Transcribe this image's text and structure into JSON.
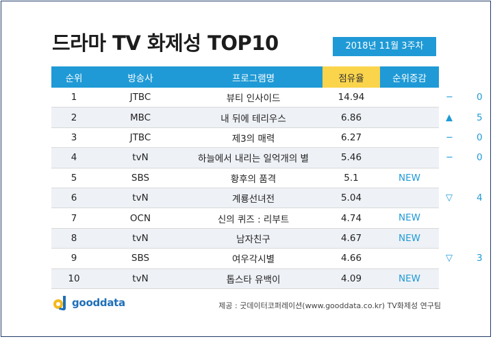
{
  "title": "드라마 TV 화제성 TOP10",
  "week": "2018년  11월 3주차",
  "columns": [
    "순위",
    "방송사",
    "프로그램명",
    "점유율",
    "순위증감"
  ],
  "rows": [
    {
      "rank": "1",
      "broadcaster": "JTBC",
      "program": "뷰티 인사이드",
      "share": "14.94",
      "change_symbol": "−",
      "change_value": "0",
      "change_new": ""
    },
    {
      "rank": "2",
      "broadcaster": "MBC",
      "program": "내 뒤에 테리우스",
      "share": "6.86",
      "change_symbol": "▲",
      "change_value": "5",
      "change_new": ""
    },
    {
      "rank": "3",
      "broadcaster": "JTBC",
      "program": "제3의 매력",
      "share": "6.27",
      "change_symbol": "−",
      "change_value": "0",
      "change_new": ""
    },
    {
      "rank": "4",
      "broadcaster": "tvN",
      "program": "하늘에서 내리는 일억개의 별",
      "share": "5.46",
      "change_symbol": "−",
      "change_value": "0",
      "change_new": ""
    },
    {
      "rank": "5",
      "broadcaster": "SBS",
      "program": "황후의 품격",
      "share": "5.1",
      "change_symbol": "",
      "change_value": "",
      "change_new": "NEW"
    },
    {
      "rank": "6",
      "broadcaster": "tvN",
      "program": "계룡선녀전",
      "share": "5.04",
      "change_symbol": "▽",
      "change_value": "4",
      "change_new": ""
    },
    {
      "rank": "7",
      "broadcaster": "OCN",
      "program": "신의 퀴즈 : 리부트",
      "share": "4.74",
      "change_symbol": "",
      "change_value": "",
      "change_new": "NEW"
    },
    {
      "rank": "8",
      "broadcaster": "tvN",
      "program": "남자친구",
      "share": "4.67",
      "change_symbol": "",
      "change_value": "",
      "change_new": "NEW"
    },
    {
      "rank": "9",
      "broadcaster": "SBS",
      "program": "여우각시별",
      "share": "4.66",
      "change_symbol": "▽",
      "change_value": "3",
      "change_new": ""
    },
    {
      "rank": "10",
      "broadcaster": "tvN",
      "program": "톱스타 유백이",
      "share": "4.09",
      "change_symbol": "",
      "change_value": "",
      "change_new": "NEW"
    }
  ],
  "logo_text": "gooddata",
  "source": "제공 : 굿데이터코퍼레이션(www.gooddata.co.kr) TV화제성 연구팀",
  "colors": {
    "header_blue": "#1f9ad6",
    "header_yellow": "#fad44b",
    "row_alt": "#eef1f6"
  }
}
